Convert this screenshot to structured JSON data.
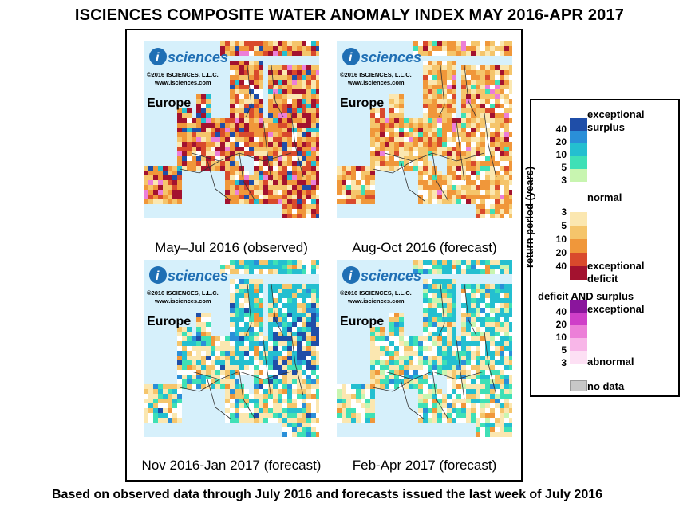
{
  "title": "ISCIENCES COMPOSITE WATER ANOMALY INDEX MAY 2016-APR 2017",
  "footer": "Based on observed data through July 2016 and forecasts issued the last week of July 2016",
  "panels": [
    {
      "caption": "May–Jul 2016 (observed)",
      "region": "Europe",
      "logo": "sciences",
      "copyright": "©2016 ISCIENCES, L.L.C.",
      "url": "www.isciences.com",
      "pattern": "deficit-heavy"
    },
    {
      "caption": "Aug-Oct 2016 (forecast)",
      "region": "Europe",
      "logo": "sciences",
      "copyright": "©2016 ISCIENCES, L.L.C.",
      "url": "www.isciences.com",
      "pattern": "deficit-moderate"
    },
    {
      "caption": "Nov 2016-Jan 2017 (forecast)",
      "region": "Europe",
      "logo": "sciences",
      "copyright": "©2016 ISCIENCES, L.L.C.",
      "url": "www.isciences.com",
      "pattern": "mixed-surplus"
    },
    {
      "caption": "Feb-Apr 2017 (forecast)",
      "region": "Europe",
      "logo": "sciences",
      "copyright": "©2016 ISCIENCES, L.L.C.",
      "url": "www.isciences.com",
      "pattern": "surplus-north"
    }
  ],
  "legend": {
    "axis_label": "return period (years)",
    "surplus_title_1": "exceptional",
    "surplus_title_2": "surplus",
    "normal": "normal",
    "deficit_title_1": "exceptional",
    "deficit_title_2": "deficit",
    "both_title": "deficit AND surplus",
    "both_top": "exceptional",
    "both_bottom": "abnormal",
    "no_data": "no data",
    "surplus_ticks": [
      "40",
      "20",
      "10",
      "5",
      "3"
    ],
    "deficit_ticks": [
      "3",
      "5",
      "10",
      "20",
      "40"
    ],
    "both_ticks": [
      "40",
      "20",
      "10",
      "5",
      "3"
    ],
    "surplus_colors": [
      "#1f4ea8",
      "#2a8fd8",
      "#24bfd0",
      "#3fe0b6",
      "#c8f5b0"
    ],
    "deficit_colors": [
      "#fbe7b0",
      "#f5c56b",
      "#f0973a",
      "#d94a2c",
      "#a3122f"
    ],
    "both_colors": [
      "#8a159c",
      "#cf3fc8",
      "#ec7fd8",
      "#f8b6e8",
      "#fde0f4"
    ],
    "no_data_color": "#c8c8c8"
  }
}
